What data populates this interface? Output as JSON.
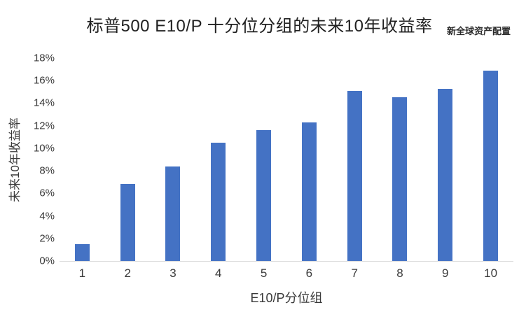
{
  "header": {
    "title": "标普500 E10/P 十分位分组的未来10年收益率",
    "watermark": "新全球资产配置"
  },
  "chart_data": {
    "type": "bar",
    "title": "标普500 E10/P 十分位分组的未来10年收益率",
    "categories": [
      "1",
      "2",
      "3",
      "4",
      "5",
      "6",
      "7",
      "8",
      "9",
      "10"
    ],
    "values": [
      1.5,
      6.8,
      8.4,
      10.5,
      11.6,
      12.3,
      15.1,
      14.5,
      15.3,
      16.9
    ],
    "xlabel": "E10/P分位组",
    "ylabel": "未来10年收益率",
    "ylim": [
      0,
      18
    ],
    "ytick_step": 2,
    "yticks": [
      "0%",
      "2%",
      "4%",
      "6%",
      "8%",
      "10%",
      "12%",
      "14%",
      "16%",
      "18%"
    ],
    "grid": false,
    "legend": "none",
    "bar_color": "#4472c4",
    "axis_line_color": "#d9d9d9",
    "value_unit": "percent"
  }
}
